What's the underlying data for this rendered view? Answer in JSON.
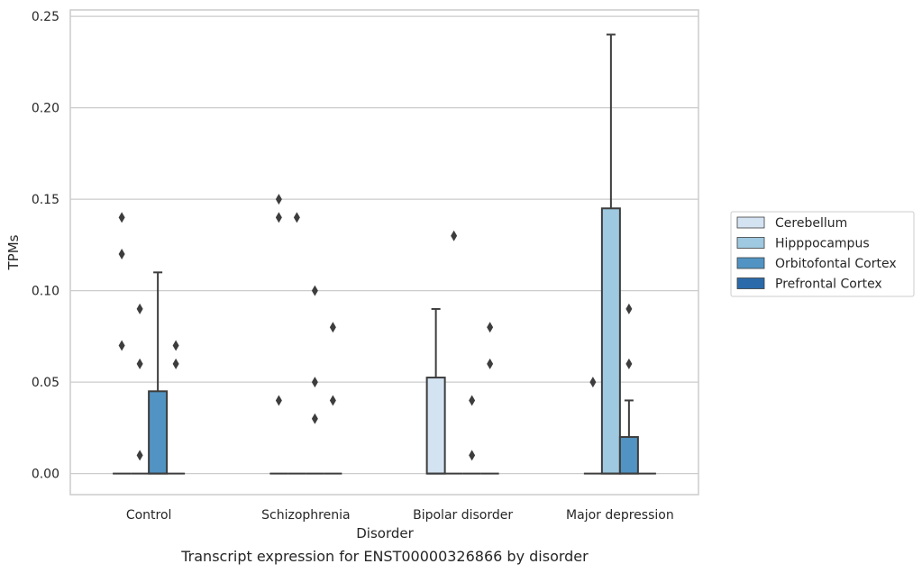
{
  "chart_data": {
    "type": "boxplot",
    "title": "Transcript expression for ENST00000326866 by disorder",
    "xlabel": "Disorder",
    "ylabel": "TPMs",
    "ylim": [
      -0.0115,
      0.2535
    ],
    "yticks": [
      "0.00",
      "0.05",
      "0.10",
      "0.15",
      "0.20",
      "0.25"
    ],
    "ytick_values": [
      0,
      0.05,
      0.1,
      0.15,
      0.2,
      0.25
    ],
    "categories": [
      "Control",
      "Schizophrenia",
      "Bipolar disorder",
      "Major depression"
    ],
    "legend_position": "right",
    "grid": "horizontal",
    "series": [
      {
        "name": "Cerebellum",
        "color": "#d4e3f2"
      },
      {
        "name": "Hipppocampus",
        "color": "#9ec9e0"
      },
      {
        "name": "Orbitofontal Cortex",
        "color": "#5194c3"
      },
      {
        "name": "Prefrontal Cortex",
        "color": "#2a6aaa"
      }
    ],
    "boxes": [
      {
        "category": 0,
        "series": 0,
        "q1": 0,
        "median": 0,
        "q3": 0,
        "whisker_low": 0,
        "whisker_high": 0,
        "outliers": [
          0.07,
          0.12,
          0.14
        ]
      },
      {
        "category": 0,
        "series": 1,
        "q1": 0,
        "median": 0,
        "q3": 0,
        "whisker_low": 0,
        "whisker_high": 0,
        "outliers": [
          0.06,
          0.09,
          0.01
        ]
      },
      {
        "category": 0,
        "series": 2,
        "q1": 0,
        "median": 0,
        "q3": 0.045,
        "whisker_low": 0,
        "whisker_high": 0.11,
        "outliers": []
      },
      {
        "category": 0,
        "series": 3,
        "q1": 0,
        "median": 0,
        "q3": 0,
        "whisker_low": 0,
        "whisker_high": 0,
        "outliers": [
          0.06,
          0.07
        ]
      },
      {
        "category": 1,
        "series": 0,
        "q1": 0,
        "median": 0,
        "q3": 0,
        "whisker_low": 0,
        "whisker_high": 0,
        "outliers": [
          0.04,
          0.14,
          0.15
        ]
      },
      {
        "category": 1,
        "series": 1,
        "q1": 0,
        "median": 0,
        "q3": 0,
        "whisker_low": 0,
        "whisker_high": 0,
        "outliers": [
          0.14
        ]
      },
      {
        "category": 1,
        "series": 2,
        "q1": 0,
        "median": 0,
        "q3": 0,
        "whisker_low": 0,
        "whisker_high": 0,
        "outliers": [
          0.03,
          0.05,
          0.1
        ]
      },
      {
        "category": 1,
        "series": 3,
        "q1": 0,
        "median": 0,
        "q3": 0,
        "whisker_low": 0,
        "whisker_high": 0,
        "outliers": [
          0.04,
          0.08
        ]
      },
      {
        "category": 2,
        "series": 0,
        "q1": 0,
        "median": 0,
        "q3": 0.0525,
        "whisker_low": 0,
        "whisker_high": 0.09,
        "outliers": []
      },
      {
        "category": 2,
        "series": 1,
        "q1": 0,
        "median": 0,
        "q3": 0,
        "whisker_low": 0,
        "whisker_high": 0,
        "outliers": [
          0.13
        ]
      },
      {
        "category": 2,
        "series": 2,
        "q1": 0,
        "median": 0,
        "q3": 0,
        "whisker_low": 0,
        "whisker_high": 0,
        "outliers": [
          0.01,
          0.04
        ]
      },
      {
        "category": 2,
        "series": 3,
        "q1": 0,
        "median": 0,
        "q3": 0,
        "whisker_low": 0,
        "whisker_high": 0,
        "outliers": [
          0.06,
          0.08
        ]
      },
      {
        "category": 3,
        "series": 0,
        "q1": 0,
        "median": 0,
        "q3": 0,
        "whisker_low": 0,
        "whisker_high": 0,
        "outliers": [
          0.05
        ]
      },
      {
        "category": 3,
        "series": 1,
        "q1": 0,
        "median": 0,
        "q3": 0.145,
        "whisker_low": 0,
        "whisker_high": 0.24,
        "outliers": []
      },
      {
        "category": 3,
        "series": 2,
        "q1": 0,
        "median": 0,
        "q3": 0.02,
        "whisker_low": 0,
        "whisker_high": 0.04,
        "outliers": [
          0.06,
          0.09
        ]
      },
      {
        "category": 3,
        "series": 3,
        "q1": 0,
        "median": 0,
        "q3": 0,
        "whisker_low": 0,
        "whisker_high": 0,
        "outliers": []
      }
    ]
  }
}
